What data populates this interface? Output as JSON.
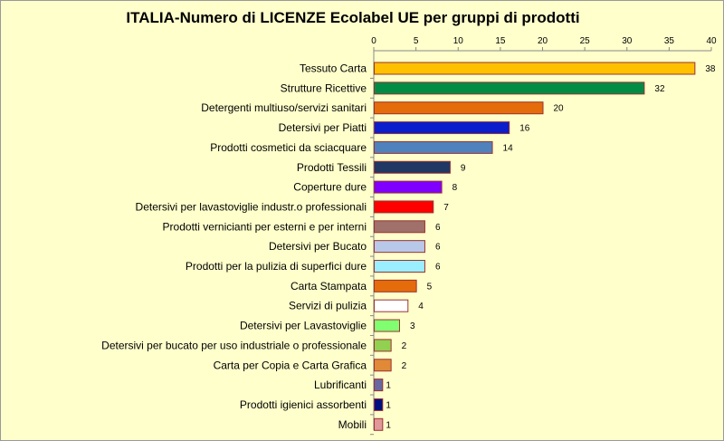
{
  "chart_data": {
    "type": "bar",
    "orientation": "horizontal",
    "title": "ITALIA-Numero di LICENZE  Ecolabel UE per gruppi di prodotti",
    "xlim": [
      0,
      40
    ],
    "xticks": [
      0,
      5,
      10,
      15,
      20,
      25,
      30,
      35,
      40
    ],
    "tick_position": "top",
    "grid": false,
    "legend": "none",
    "background_color": "#FFFFCC",
    "categories": [
      "Tessuto Carta",
      "Strutture Ricettive",
      "Detergenti multiuso/servizi sanitari",
      "Detersivi per Piatti",
      "Prodotti cosmetici da sciacquare",
      "Prodotti Tessili",
      "Coperture dure",
      "Detersivi per lavastoviglie industr.o professionali",
      "Prodotti vernicianti per esterni e per interni",
      "Detersivi per Bucato",
      "Prodotti per la pulizia di superfici dure",
      "Carta Stampata",
      "Servizi di pulizia",
      "Detersivi per Lavastoviglie",
      "Detersivi per bucato per uso industriale o professionale",
      "Carta per Copia e  Carta Grafica",
      "Lubrificanti",
      "Prodotti igienici assorbenti",
      "Mobili"
    ],
    "values": [
      38,
      32,
      20,
      16,
      14,
      9,
      8,
      7,
      6,
      6,
      6,
      5,
      4,
      3,
      2,
      2,
      1,
      1,
      1
    ],
    "colors": [
      "#FFC000",
      "#008C44",
      "#E46C0A",
      "#0A1ECC",
      "#4F81BD",
      "#1F3864",
      "#7F00FF",
      "#FF0000",
      "#A0706A",
      "#B8C8E8",
      "#99EEFF",
      "#E46C0A",
      "#FFFFFF",
      "#80FF70",
      "#92D050",
      "#E08A38",
      "#6868A0",
      "#001080",
      "#E09898"
    ],
    "bar_edge_color": "#993333"
  }
}
